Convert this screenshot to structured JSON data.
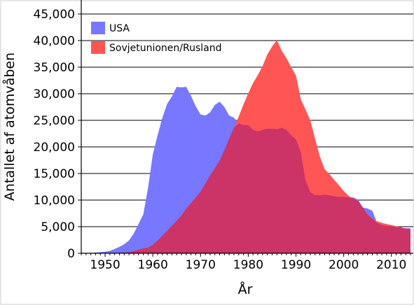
{
  "chart_data": {
    "type": "area",
    "title": "",
    "xlabel": "År",
    "ylabel": "Antallet af atomvåben",
    "xlim": [
      1945,
      2014
    ],
    "ylim": [
      0,
      45000
    ],
    "x_ticks": [
      1950,
      1960,
      1970,
      1980,
      1990,
      2000,
      2010
    ],
    "y_ticks": [
      0,
      5000,
      10000,
      15000,
      20000,
      25000,
      30000,
      35000,
      40000,
      45000
    ],
    "y_tick_labels": [
      "0",
      "5,000",
      "10,000",
      "15,000",
      "20,000",
      "25,000",
      "30,000",
      "35,000",
      "40,000",
      "45,000"
    ],
    "grid": "horizontal",
    "legend_position": "top-left",
    "overlap_color": "#cc3366",
    "series": [
      {
        "name": "USA",
        "color": "#7777ff",
        "points": [
          [
            1945,
            0
          ],
          [
            1947,
            50
          ],
          [
            1949,
            200
          ],
          [
            1950,
            300
          ],
          [
            1951,
            450
          ],
          [
            1952,
            800
          ],
          [
            1953,
            1200
          ],
          [
            1954,
            1700
          ],
          [
            1955,
            2400
          ],
          [
            1956,
            3700
          ],
          [
            1957,
            5500
          ],
          [
            1958,
            7300
          ],
          [
            1959,
            12300
          ],
          [
            1960,
            18600
          ],
          [
            1961,
            22200
          ],
          [
            1962,
            25500
          ],
          [
            1963,
            28100
          ],
          [
            1964,
            29500
          ],
          [
            1965,
            31300
          ],
          [
            1966,
            31200
          ],
          [
            1967,
            31300
          ],
          [
            1968,
            29600
          ],
          [
            1969,
            27600
          ],
          [
            1970,
            26100
          ],
          [
            1971,
            25900
          ],
          [
            1972,
            26500
          ],
          [
            1973,
            27900
          ],
          [
            1974,
            28500
          ],
          [
            1975,
            27500
          ],
          [
            1976,
            25900
          ],
          [
            1977,
            25500
          ],
          [
            1978,
            24400
          ],
          [
            1979,
            24100
          ],
          [
            1980,
            24100
          ],
          [
            1981,
            23200
          ],
          [
            1982,
            22900
          ],
          [
            1983,
            23200
          ],
          [
            1984,
            23400
          ],
          [
            1985,
            23400
          ],
          [
            1986,
            23300
          ],
          [
            1987,
            23600
          ],
          [
            1988,
            23200
          ],
          [
            1989,
            22200
          ],
          [
            1990,
            21400
          ],
          [
            1991,
            19000
          ],
          [
            1992,
            13700
          ],
          [
            1993,
            11500
          ],
          [
            1994,
            10900
          ],
          [
            1995,
            10900
          ],
          [
            1996,
            11000
          ],
          [
            1997,
            10900
          ],
          [
            1998,
            10700
          ],
          [
            1999,
            10600
          ],
          [
            2000,
            10600
          ],
          [
            2001,
            10500
          ],
          [
            2002,
            10500
          ],
          [
            2003,
            10100
          ],
          [
            2004,
            8600
          ],
          [
            2005,
            8400
          ],
          [
            2006,
            8000
          ],
          [
            2007,
            5700
          ],
          [
            2008,
            5300
          ],
          [
            2009,
            5100
          ],
          [
            2010,
            5100
          ],
          [
            2011,
            4900
          ],
          [
            2012,
            4800
          ],
          [
            2013,
            4700
          ],
          [
            2014,
            4700
          ]
        ]
      },
      {
        "name": "Sovjetunionen/Rusland",
        "color": "#ff5555",
        "points": [
          [
            1945,
            0
          ],
          [
            1949,
            0
          ],
          [
            1950,
            5
          ],
          [
            1952,
            50
          ],
          [
            1954,
            150
          ],
          [
            1955,
            200
          ],
          [
            1956,
            400
          ],
          [
            1957,
            650
          ],
          [
            1958,
            900
          ],
          [
            1959,
            1060
          ],
          [
            1960,
            1600
          ],
          [
            1961,
            2400
          ],
          [
            1962,
            3300
          ],
          [
            1963,
            4200
          ],
          [
            1964,
            5200
          ],
          [
            1965,
            6100
          ],
          [
            1966,
            7100
          ],
          [
            1967,
            8400
          ],
          [
            1968,
            9400
          ],
          [
            1969,
            10500
          ],
          [
            1970,
            11600
          ],
          [
            1971,
            13100
          ],
          [
            1972,
            14600
          ],
          [
            1973,
            16000
          ],
          [
            1974,
            17400
          ],
          [
            1975,
            19400
          ],
          [
            1976,
            21600
          ],
          [
            1977,
            23600
          ],
          [
            1978,
            25700
          ],
          [
            1979,
            28000
          ],
          [
            1980,
            30100
          ],
          [
            1981,
            32000
          ],
          [
            1982,
            33500
          ],
          [
            1983,
            35200
          ],
          [
            1984,
            37400
          ],
          [
            1985,
            38900
          ],
          [
            1986,
            40100
          ],
          [
            1987,
            38100
          ],
          [
            1988,
            36700
          ],
          [
            1989,
            35000
          ],
          [
            1990,
            33400
          ],
          [
            1991,
            29000
          ],
          [
            1992,
            27000
          ],
          [
            1993,
            25000
          ],
          [
            1994,
            21500
          ],
          [
            1995,
            18200
          ],
          [
            1996,
            15800
          ],
          [
            1997,
            14900
          ],
          [
            1998,
            13800
          ],
          [
            1999,
            12800
          ],
          [
            2000,
            11700
          ],
          [
            2001,
            10800
          ],
          [
            2002,
            10300
          ],
          [
            2003,
            9800
          ],
          [
            2004,
            8600
          ],
          [
            2005,
            7300
          ],
          [
            2006,
            6500
          ],
          [
            2007,
            6000
          ],
          [
            2008,
            5700
          ],
          [
            2009,
            5500
          ],
          [
            2010,
            5300
          ],
          [
            2011,
            5100
          ],
          [
            2012,
            4900
          ],
          [
            2013,
            4600
          ],
          [
            2014,
            4500
          ]
        ]
      }
    ]
  }
}
